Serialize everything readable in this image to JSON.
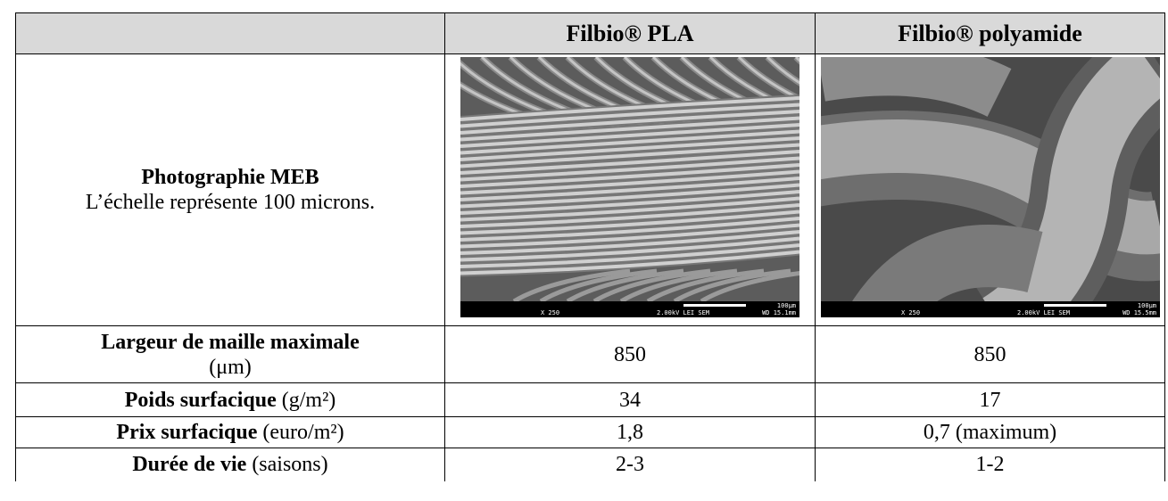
{
  "header": {
    "columns": [
      "Filbio® PLA",
      "Filbio® polyamide"
    ]
  },
  "photo_row": {
    "label": "Photographie MEB",
    "note": "L’échelle représente 100 microns.",
    "images": [
      {
        "scale": "100µm",
        "mag": "X 250",
        "info": "2.00kV LEI   SEM",
        "wd": "WD 15.1mm"
      },
      {
        "scale": "100µm",
        "mag": "X 250",
        "info": "2.00kV LEI   SEM",
        "wd": "WD 15.5mm"
      }
    ]
  },
  "rows": [
    {
      "label": "Largeur de maille maximale",
      "unit": "(μm)",
      "values": [
        "850",
        "850"
      ]
    },
    {
      "label": "Poids surfacique",
      "unit": "(g/m²)",
      "values": [
        "34",
        "17"
      ]
    },
    {
      "label": "Prix surfacique",
      "unit": "(euro/m²)",
      "values": [
        "1,8",
        "0,7 (maximum)"
      ]
    },
    {
      "label": "Durée de vie",
      "unit": "(saisons)",
      "values": [
        "2-3",
        "1-2"
      ]
    }
  ]
}
